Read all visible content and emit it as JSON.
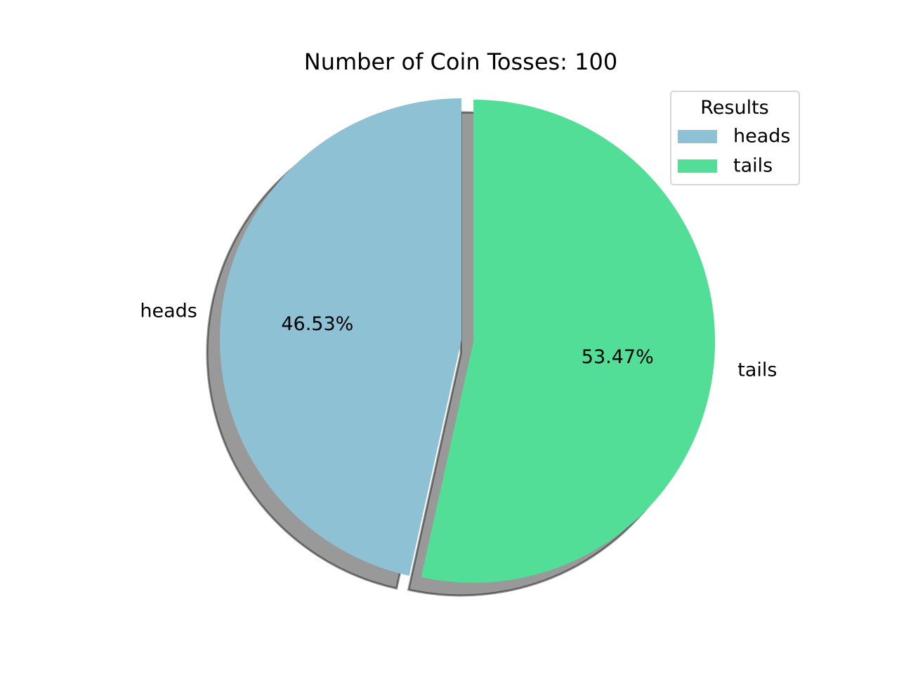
{
  "chart_data": {
    "type": "pie",
    "title": "Number of Coin Tosses: 100",
    "labels": [
      "heads",
      "tails"
    ],
    "values": [
      46.53,
      53.47
    ],
    "value_labels": [
      "46.53%",
      "53.47%"
    ],
    "colors": [
      "#8fc1d4",
      "#52de96"
    ],
    "explode": [
      0.0,
      0.05
    ],
    "start_angle": 90,
    "shadow": true,
    "legend": {
      "title": "Results",
      "entries": [
        "heads",
        "tails"
      ],
      "placement": "top-right"
    }
  }
}
